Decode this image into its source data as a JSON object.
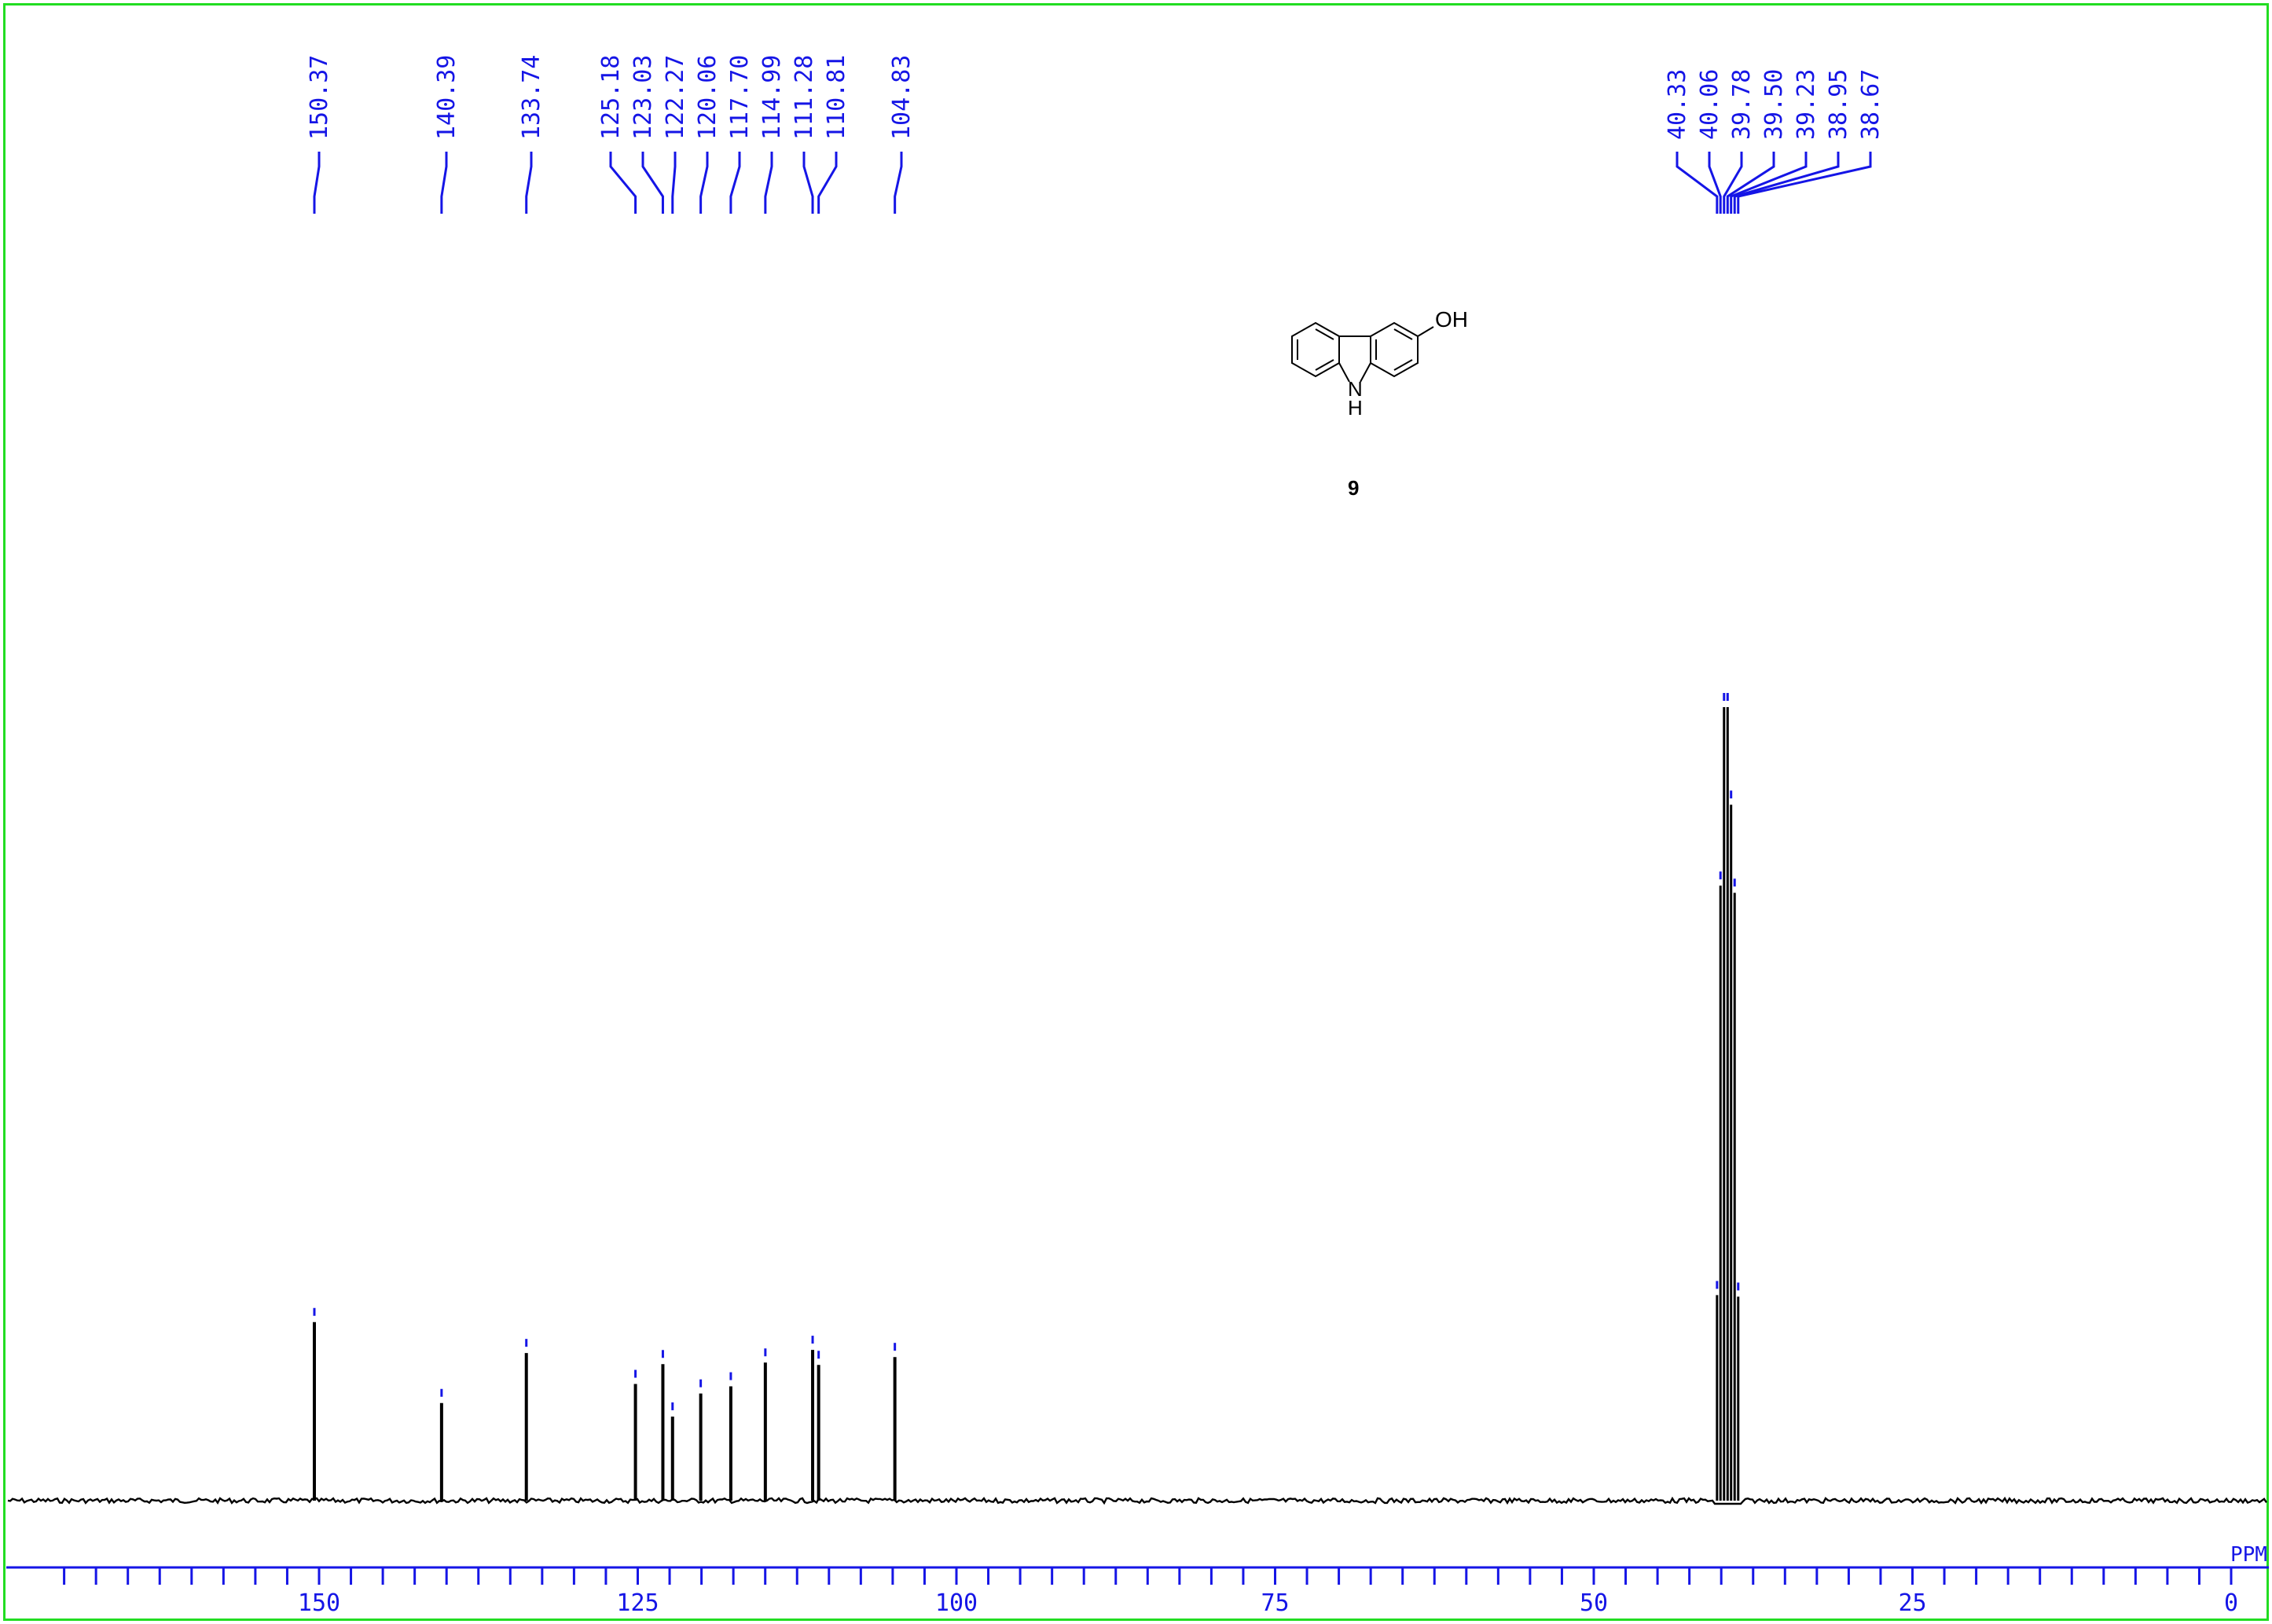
{
  "chart_data": {
    "type": "line",
    "title": "",
    "xlabel": "PPM",
    "ylabel": "",
    "xlim": [
      172,
      0
    ],
    "x_direction": "reversed",
    "axis": {
      "major_ticks": [
        150,
        125,
        100,
        75,
        50,
        25,
        0
      ],
      "tick_labels": [
        "150",
        "125",
        "100",
        "75",
        "50",
        "25",
        "0"
      ],
      "minor_tick_step": 2.5
    },
    "series": [
      {
        "peaks": [
          {
            "ppm": 150.37,
            "label": "150.37",
            "height": 0.225
          },
          {
            "ppm": 140.39,
            "label": "140.39",
            "height": 0.123
          },
          {
            "ppm": 133.74,
            "label": "133.74",
            "height": 0.186
          },
          {
            "ppm": 125.18,
            "label": "125.18",
            "height": 0.147
          },
          {
            "ppm": 123.03,
            "label": "123.03",
            "height": 0.172
          },
          {
            "ppm": 122.27,
            "label": "122.27",
            "height": 0.106
          },
          {
            "ppm": 120.06,
            "label": "120.06",
            "height": 0.135
          },
          {
            "ppm": 117.7,
            "label": "117.70",
            "height": 0.144
          },
          {
            "ppm": 114.99,
            "label": "114.99",
            "height": 0.174
          },
          {
            "ppm": 111.28,
            "label": "111.28",
            "height": 0.19
          },
          {
            "ppm": 110.81,
            "label": "110.81",
            "height": 0.171
          },
          {
            "ppm": 104.83,
            "label": "104.83",
            "height": 0.181
          },
          {
            "ppm": 40.33,
            "label": "40.33",
            "height": 0.259
          },
          {
            "ppm": 40.06,
            "label": "40.06",
            "height": 0.775
          },
          {
            "ppm": 39.78,
            "label": "39.78",
            "height": 1.0
          },
          {
            "ppm": 39.5,
            "label": "39.50",
            "height": 1.0
          },
          {
            "ppm": 39.23,
            "label": "39.23",
            "height": 0.877
          },
          {
            "ppm": 38.95,
            "label": "38.95",
            "height": 0.766
          },
          {
            "ppm": 38.67,
            "label": "38.67",
            "height": 0.257
          }
        ]
      }
    ],
    "grid": false
  },
  "structure": {
    "substituent_label": "OH",
    "nh_label": "N",
    "h_label": "H",
    "compound_number": "9"
  },
  "colors": {
    "frame": "#22dd22",
    "axis": "#1515e6",
    "labels": "#1515e6",
    "spectrum": "#000000"
  }
}
